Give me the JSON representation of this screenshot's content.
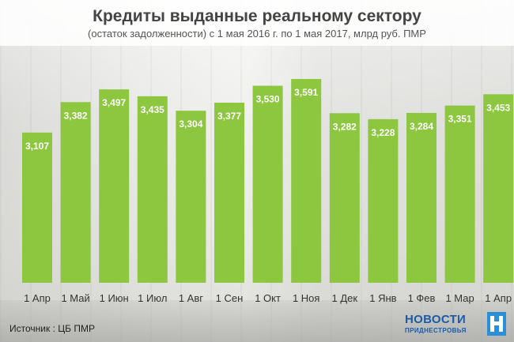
{
  "chart_data": {
    "type": "bar",
    "title": "Кредиты выданные реальному сектору",
    "subtitle": "(остаток задолженности) с 1 мая 2016 г. по 1 мая 2017, млрд руб. ПМР",
    "categories": [
      "1 Апр",
      "1 Май",
      "1 Июн",
      "1 Июл",
      "1 Авг",
      "1 Сен",
      "1 Окт",
      "1 Ноя",
      "1 Дек",
      "1 Янв",
      "1 Фев",
      "1 Мар",
      "1 Апр"
    ],
    "value_labels": [
      "3,107",
      "3,382",
      "3,497",
      "3,435",
      "3,304",
      "3,377",
      "3,530",
      "3,591",
      "3,282",
      "3,228",
      "3,284",
      "3,351",
      "3,453"
    ],
    "values": [
      3.107,
      3.382,
      3.497,
      3.435,
      3.304,
      3.377,
      3.53,
      3.591,
      3.282,
      3.228,
      3.284,
      3.351,
      3.453
    ],
    "ylim": [
      1.75,
      3.591
    ],
    "bar_color": "#8dc63f",
    "grid": false,
    "legend": "none"
  },
  "footer": {
    "source": "Источник : ЦБ ПМР",
    "logo_main": "НОВОСТИ",
    "logo_sub": "ПРИДНЕСТРОВЬЯ",
    "logo_color": "#1d5aa8"
  }
}
